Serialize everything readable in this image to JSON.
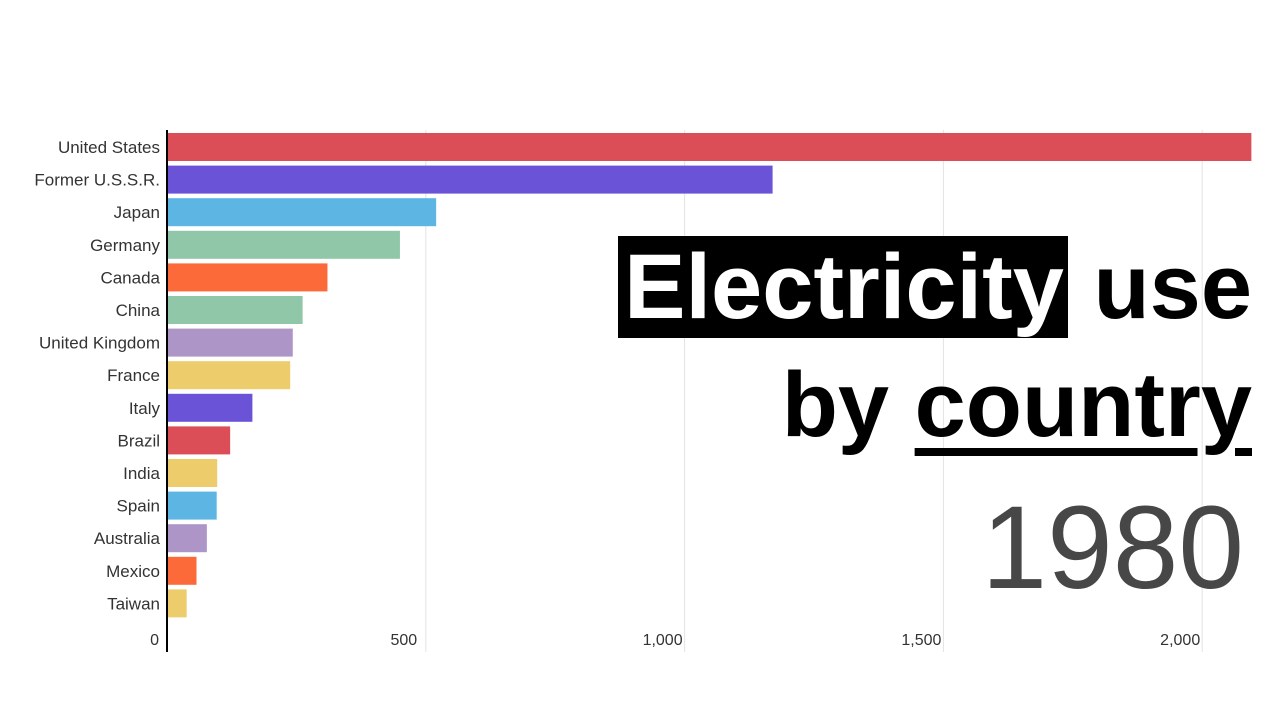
{
  "title": {
    "highlight": "Electricity",
    "line1_rest": " use",
    "line2_pre": "by ",
    "line2_underlined": "country"
  },
  "year": "1980",
  "chart_data": {
    "type": "bar",
    "orientation": "horizontal",
    "categories": [
      "United States",
      "Former U.S.S.R.",
      "Japan",
      "Germany",
      "Canada",
      "China",
      "United Kingdom",
      "France",
      "Italy",
      "Brazil",
      "India",
      "Spain",
      "Australia",
      "Mexico",
      "Taiwan"
    ],
    "values": [
      2095,
      1170,
      520,
      450,
      310,
      262,
      243,
      238,
      165,
      122,
      97,
      96,
      77,
      57,
      38
    ],
    "colors": [
      "#db4e57",
      "#6b53d8",
      "#5db5e4",
      "#8fc7a8",
      "#fd6a3a",
      "#8fc7a8",
      "#ad95c8",
      "#edcc6c",
      "#6b53d8",
      "#db4e57",
      "#edcc6c",
      "#5db5e4",
      "#ad95c8",
      "#fd6a3a",
      "#edcc6c"
    ],
    "xticks": [
      0,
      500,
      1000,
      1500,
      2000
    ],
    "xtick_labels": [
      "0",
      "500",
      "1,000",
      "1,500",
      "2,000"
    ],
    "xlim": [
      0,
      2100
    ],
    "grid": true,
    "legend": "none"
  }
}
